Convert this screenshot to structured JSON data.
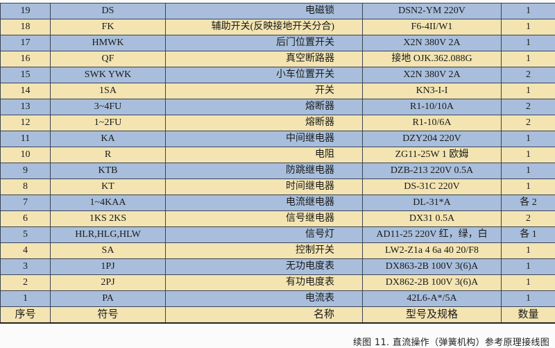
{
  "colors": {
    "row_blue": "#a8bedc",
    "row_cream": "#f3e4b2"
  },
  "table": {
    "header": [
      "序号",
      "符号",
      "名称",
      "型号及规格",
      "数量"
    ],
    "rows": [
      [
        "19",
        "DS",
        "电磁锁",
        "DSN2-YM  220V",
        "1"
      ],
      [
        "18",
        "FK",
        "辅助开关(反映接地开关分合)",
        "F6-4II/W1",
        "1"
      ],
      [
        "17",
        "HMWK",
        "后门位置开关",
        "X2N 380V 2A",
        "1"
      ],
      [
        "16",
        "QF",
        "真空断路器",
        "接地 OJK.362.088G",
        "1"
      ],
      [
        "15",
        "SWK YWK",
        "小车位置开关",
        "X2N 380V 2A",
        "2"
      ],
      [
        "14",
        "1SA",
        "开关",
        "KN3-I-I",
        "1"
      ],
      [
        "13",
        "3~4FU",
        "熔断器",
        "R1-10/10A",
        "2"
      ],
      [
        "12",
        "1~2FU",
        "熔断器",
        "R1-10/6A",
        "2"
      ],
      [
        "11",
        "KA",
        "中间继电器",
        "DZY204 220V",
        "1"
      ],
      [
        "10",
        "R",
        "电阻",
        "ZG11-25W 1 欧姆",
        "1"
      ],
      [
        "9",
        "KTB",
        "防跳继电器",
        "DZB-213 220V 0.5A",
        "1"
      ],
      [
        "8",
        "KT",
        "时间继电器",
        "DS-31C 220V",
        "1"
      ],
      [
        "7",
        "1~4KAA",
        "电流继电器",
        "DL-31*A",
        "各 2"
      ],
      [
        "6",
        "1KS 2KS",
        "信号继电器",
        "DX31 0.5A",
        "2"
      ],
      [
        "5",
        "HLR,HLG,HLW",
        "信号灯",
        "AD11-25 220V 红，绿，白",
        "各 1"
      ],
      [
        "4",
        "SA",
        "控制开关",
        "LW2-Z1a 4 6a 40 20/F8",
        "1"
      ],
      [
        "3",
        "1PJ",
        "无功电度表",
        "DX863-2B 100V 3(6)A",
        "1"
      ],
      [
        "2",
        "2PJ",
        "有功电度表",
        "DX862-2B 100V 3(6)A",
        "1"
      ],
      [
        "1",
        "PA",
        "电流表",
        "42L6-A*/5A",
        "1"
      ]
    ]
  },
  "caption": "续图 11. 直流操作（弹簧机构）参考原理接线图"
}
